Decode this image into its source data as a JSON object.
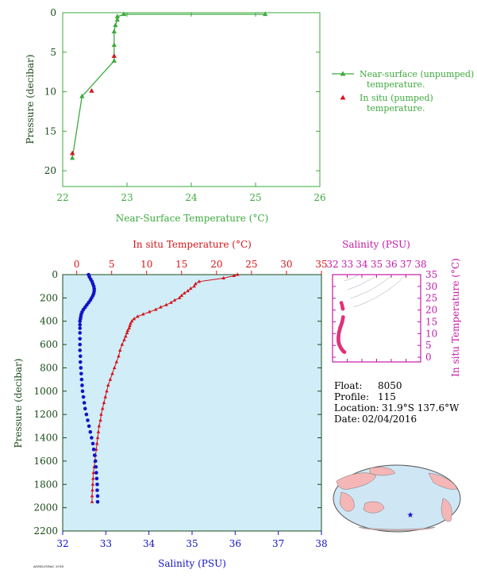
{
  "colors": {
    "green": "#3daa3d",
    "red": "#d4141a",
    "blue": "#1212c8",
    "magenta": "#c41aa8",
    "panel_bg": "#d0edf8",
    "axis_dark": "#1a4a1a",
    "ocean": "#cfe6f5",
    "land": "#f4b6b6",
    "star": "#1212c8"
  },
  "info": {
    "float_label": "Float:",
    "float_value": "8050",
    "profile_label": "Profile:",
    "profile_value": "115",
    "location_label": "Location:",
    "location_value": "31.9°S  137.6°W",
    "date_label": "Date:",
    "date_value": "02/04/2016"
  },
  "footer_note": "AOML/GDAC 2016",
  "chart_data": [
    {
      "id": "near-surface",
      "type": "line",
      "xlabel": "Near-Surface Temperature (°C)",
      "ylabel": "Pressure (decibar)",
      "xlim": [
        22,
        26
      ],
      "ylim": [
        22,
        0
      ],
      "xticks": [
        22,
        23,
        24,
        25,
        26
      ],
      "yticks": [
        0,
        5,
        10,
        15,
        20
      ],
      "legend_position": "right",
      "series": [
        {
          "name": "Near-surface (unpumped) temperature.",
          "x": [
            22.15,
            22.3,
            22.8,
            22.8,
            22.8,
            22.82,
            22.85,
            22.85,
            22.95,
            25.15
          ],
          "y": [
            18.4,
            10.6,
            6.1,
            4.1,
            2.4,
            1.6,
            0.9,
            0.5,
            0.2,
            0.2
          ]
        },
        {
          "name": "In situ (pumped) temperature.",
          "x": [
            22.15,
            22.45,
            22.8
          ],
          "y": [
            17.8,
            9.9,
            5.5
          ]
        }
      ]
    },
    {
      "id": "profile",
      "type": "line",
      "ylabel": "Pressure (decibar)",
      "ylim": [
        2200,
        0
      ],
      "yticks": [
        0,
        200,
        400,
        600,
        800,
        1000,
        1200,
        1400,
        1600,
        1800,
        2000,
        2200
      ],
      "top_axis": {
        "label": "In situ Temperature (°C)",
        "lim": [
          -2,
          35
        ],
        "ticks": [
          0,
          5,
          10,
          15,
          20,
          25,
          30,
          35
        ]
      },
      "bottom_axis": {
        "label": "Salinity (PSU)",
        "lim": [
          32,
          38
        ],
        "ticks": [
          32,
          33,
          34,
          35,
          36,
          37,
          38
        ]
      },
      "series": [
        {
          "name": "In situ Temperature",
          "axis": "top",
          "points": [
            [
              23.0,
              0
            ],
            [
              22.5,
              10
            ],
            [
              21.0,
              30
            ],
            [
              17.5,
              60
            ],
            [
              17.0,
              80
            ],
            [
              16.8,
              100
            ],
            [
              16.3,
              120
            ],
            [
              15.9,
              140
            ],
            [
              15.4,
              160
            ],
            [
              15.0,
              180
            ],
            [
              14.7,
              200
            ],
            [
              14.0,
              220
            ],
            [
              13.5,
              240
            ],
            [
              12.8,
              260
            ],
            [
              12.0,
              280
            ],
            [
              11.3,
              300
            ],
            [
              10.4,
              320
            ],
            [
              9.5,
              340
            ],
            [
              8.7,
              360
            ],
            [
              8.2,
              380
            ],
            [
              7.9,
              400
            ],
            [
              7.7,
              420
            ],
            [
              7.6,
              440
            ],
            [
              7.5,
              460
            ],
            [
              7.3,
              480
            ],
            [
              7.2,
              500
            ],
            [
              7.0,
              530
            ],
            [
              6.8,
              560
            ],
            [
              6.5,
              600
            ],
            [
              6.2,
              650
            ],
            [
              6.0,
              700
            ],
            [
              5.7,
              750
            ],
            [
              5.4,
              800
            ],
            [
              5.1,
              850
            ],
            [
              4.8,
              900
            ],
            [
              4.5,
              950
            ],
            [
              4.3,
              1000
            ],
            [
              4.1,
              1050
            ],
            [
              3.9,
              1100
            ],
            [
              3.7,
              1150
            ],
            [
              3.5,
              1200
            ],
            [
              3.4,
              1250
            ],
            [
              3.2,
              1300
            ],
            [
              3.1,
              1350
            ],
            [
              3.0,
              1400
            ],
            [
              2.9,
              1450
            ],
            [
              2.8,
              1500
            ],
            [
              2.7,
              1550
            ],
            [
              2.6,
              1600
            ],
            [
              2.5,
              1650
            ],
            [
              2.4,
              1700
            ],
            [
              2.35,
              1750
            ],
            [
              2.3,
              1800
            ],
            [
              2.25,
              1850
            ],
            [
              2.2,
              1900
            ],
            [
              2.2,
              1950
            ]
          ]
        },
        {
          "name": "Salinity",
          "axis": "bottom",
          "points": [
            [
              32.6,
              0
            ],
            [
              32.62,
              20
            ],
            [
              32.65,
              40
            ],
            [
              32.68,
              60
            ],
            [
              32.7,
              80
            ],
            [
              32.72,
              100
            ],
            [
              32.73,
              120
            ],
            [
              32.73,
              140
            ],
            [
              32.72,
              160
            ],
            [
              32.7,
              180
            ],
            [
              32.67,
              200
            ],
            [
              32.64,
              220
            ],
            [
              32.6,
              240
            ],
            [
              32.56,
              260
            ],
            [
              32.52,
              280
            ],
            [
              32.48,
              300
            ],
            [
              32.45,
              320
            ],
            [
              32.43,
              340
            ],
            [
              32.42,
              360
            ],
            [
              32.41,
              380
            ],
            [
              32.4,
              400
            ],
            [
              32.4,
              430
            ],
            [
              32.4,
              460
            ],
            [
              32.4,
              500
            ],
            [
              32.4,
              550
            ],
            [
              32.4,
              600
            ],
            [
              32.4,
              650
            ],
            [
              32.41,
              700
            ],
            [
              32.41,
              750
            ],
            [
              32.42,
              800
            ],
            [
              32.43,
              850
            ],
            [
              32.44,
              900
            ],
            [
              32.45,
              950
            ],
            [
              32.46,
              1000
            ],
            [
              32.48,
              1050
            ],
            [
              32.5,
              1100
            ],
            [
              32.52,
              1150
            ],
            [
              32.55,
              1200
            ],
            [
              32.58,
              1250
            ],
            [
              32.61,
              1300
            ],
            [
              32.64,
              1350
            ],
            [
              32.67,
              1400
            ],
            [
              32.7,
              1450
            ],
            [
              32.72,
              1500
            ],
            [
              32.74,
              1550
            ],
            [
              32.76,
              1600
            ],
            [
              32.77,
              1650
            ],
            [
              32.78,
              1700
            ],
            [
              32.79,
              1750
            ],
            [
              32.8,
              1800
            ],
            [
              32.8,
              1850
            ],
            [
              32.81,
              1900
            ],
            [
              32.81,
              1950
            ]
          ]
        }
      ]
    },
    {
      "id": "ts",
      "type": "scatter",
      "xlabel": "Salinity (PSU)",
      "ylabel": "In situ Temperature (°C)",
      "xlim": [
        32,
        38
      ],
      "ylim": [
        -2,
        35
      ],
      "xticks": [
        32,
        33,
        34,
        35,
        36,
        37,
        38
      ],
      "yticks": [
        0,
        5,
        10,
        15,
        20,
        25,
        30,
        35
      ],
      "grid": "density contours",
      "points": [
        [
          32.6,
          23
        ],
        [
          32.65,
          22
        ],
        [
          32.68,
          21
        ],
        [
          32.7,
          20.5
        ],
        [
          32.72,
          17
        ],
        [
          32.7,
          16.3
        ],
        [
          32.68,
          15.6
        ],
        [
          32.65,
          14.8
        ],
        [
          32.62,
          14.2
        ],
        [
          32.58,
          13.5
        ],
        [
          32.55,
          13
        ],
        [
          32.52,
          12.5
        ],
        [
          32.5,
          12
        ],
        [
          32.48,
          11.4
        ],
        [
          32.45,
          10.8
        ],
        [
          32.43,
          10.2
        ],
        [
          32.42,
          9.6
        ],
        [
          32.41,
          9
        ],
        [
          32.4,
          8.5
        ],
        [
          32.4,
          8
        ],
        [
          32.4,
          7.5
        ],
        [
          32.4,
          7
        ],
        [
          32.41,
          6.5
        ],
        [
          32.43,
          6
        ],
        [
          32.45,
          5.5
        ],
        [
          32.48,
          5
        ],
        [
          32.52,
          4.5
        ],
        [
          32.56,
          4
        ],
        [
          32.6,
          3.6
        ],
        [
          32.65,
          3.2
        ],
        [
          32.7,
          2.8
        ],
        [
          32.74,
          2.5
        ],
        [
          32.78,
          2.3
        ],
        [
          32.81,
          2.2
        ]
      ]
    }
  ]
}
